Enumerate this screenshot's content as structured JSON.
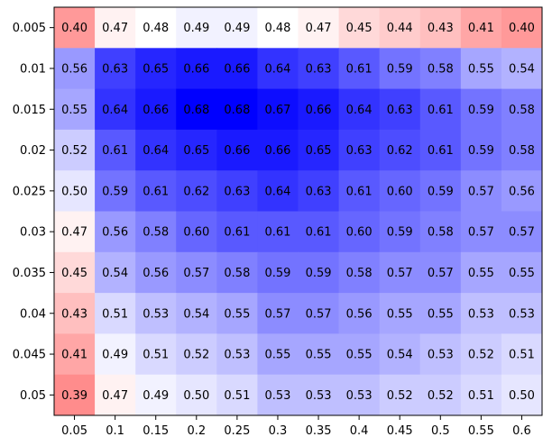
{
  "chart_data": {
    "type": "heatmap",
    "title": "",
    "xlabel": "",
    "ylabel": "",
    "x_categories": [
      "0.05",
      "0.1",
      "0.15",
      "0.2",
      "0.25",
      "0.3",
      "0.35",
      "0.4",
      "0.45",
      "0.5",
      "0.55",
      "0.6"
    ],
    "y_categories": [
      "0.005",
      "0.01",
      "0.015",
      "0.02",
      "0.025",
      "0.03",
      "0.035",
      "0.04",
      "0.045",
      "0.05"
    ],
    "values": [
      [
        0.4,
        0.47,
        0.48,
        0.49,
        0.49,
        0.48,
        0.47,
        0.45,
        0.44,
        0.43,
        0.41,
        0.4
      ],
      [
        0.56,
        0.63,
        0.65,
        0.66,
        0.66,
        0.64,
        0.63,
        0.61,
        0.59,
        0.58,
        0.55,
        0.54
      ],
      [
        0.55,
        0.64,
        0.66,
        0.68,
        0.68,
        0.67,
        0.66,
        0.64,
        0.63,
        0.61,
        0.59,
        0.58
      ],
      [
        0.52,
        0.61,
        0.64,
        0.65,
        0.66,
        0.66,
        0.65,
        0.63,
        0.62,
        0.61,
        0.59,
        0.58
      ],
      [
        0.5,
        0.59,
        0.61,
        0.62,
        0.63,
        0.64,
        0.63,
        0.61,
        0.6,
        0.59,
        0.57,
        0.56
      ],
      [
        0.47,
        0.56,
        0.58,
        0.6,
        0.61,
        0.61,
        0.61,
        0.6,
        0.59,
        0.58,
        0.57,
        0.57
      ],
      [
        0.45,
        0.54,
        0.56,
        0.57,
        0.58,
        0.59,
        0.59,
        0.58,
        0.57,
        0.57,
        0.55,
        0.55
      ],
      [
        0.43,
        0.51,
        0.53,
        0.54,
        0.55,
        0.57,
        0.57,
        0.56,
        0.55,
        0.55,
        0.53,
        0.53
      ],
      [
        0.41,
        0.49,
        0.51,
        0.52,
        0.53,
        0.55,
        0.55,
        0.55,
        0.54,
        0.53,
        0.52,
        0.51
      ],
      [
        0.39,
        0.47,
        0.49,
        0.5,
        0.51,
        0.53,
        0.53,
        0.53,
        0.52,
        0.52,
        0.51,
        0.5
      ]
    ],
    "colormap": "bwr_r",
    "color_center": 0.48,
    "color_range": [
      0.28,
      0.68
    ],
    "low_color": "#ff0000",
    "mid_color": "#ffffff",
    "high_color": "#0000ff",
    "cell_labels": true,
    "grid": false
  }
}
